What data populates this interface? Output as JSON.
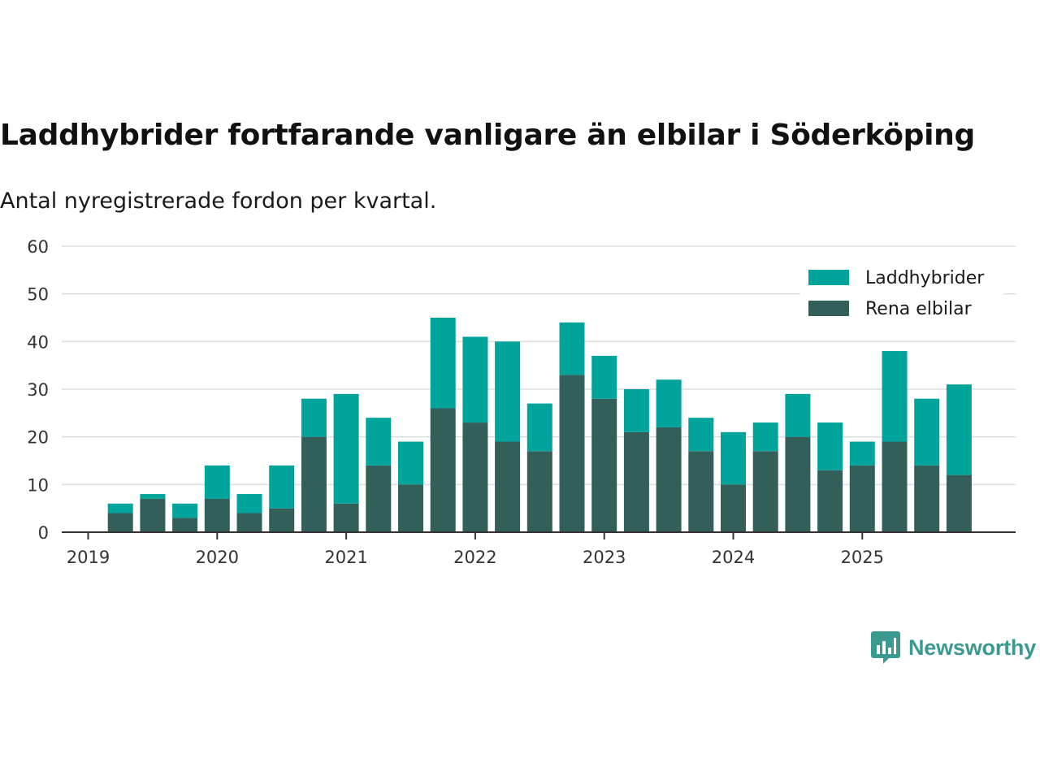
{
  "title": "Laddhybrider fortfarande vanligare än elbilar i Söderköping",
  "subtitle": "Antal nyregistrerade fordon per kvartal.",
  "brand": {
    "name": "Newsworthy",
    "icon": "newsworthy-logo-icon",
    "color": "#3a9a8f"
  },
  "colors": {
    "laddhybrider": "#00a49b",
    "rena_elbilar": "#335f5a",
    "grid": "#dddddd",
    "axis": "#333333"
  },
  "chart_data": {
    "type": "bar",
    "stacked": true,
    "categories": [
      "2019 Q2",
      "2019 Q3",
      "2019 Q4",
      "2020 Q1",
      "2020 Q2",
      "2020 Q3",
      "2020 Q4",
      "2021 Q1",
      "2021 Q2",
      "2021 Q3",
      "2021 Q4",
      "2022 Q1",
      "2022 Q2",
      "2022 Q3",
      "2022 Q4",
      "2023 Q1",
      "2023 Q2",
      "2023 Q3",
      "2023 Q4",
      "2024 Q1",
      "2024 Q2",
      "2024 Q3",
      "2024 Q4",
      "2025 Q1",
      "2025 Q2",
      "2025 Q3",
      "2025 Q4"
    ],
    "series": [
      {
        "name": "Rena elbilar",
        "values": [
          4,
          7,
          3,
          7,
          4,
          5,
          20,
          6,
          14,
          10,
          26,
          23,
          19,
          17,
          33,
          28,
          21,
          22,
          17,
          10,
          17,
          20,
          13,
          14,
          19,
          14,
          12
        ]
      },
      {
        "name": "Laddhybrider",
        "values": [
          2,
          1,
          3,
          7,
          4,
          9,
          8,
          23,
          10,
          9,
          19,
          18,
          21,
          10,
          11,
          9,
          9,
          10,
          7,
          11,
          6,
          9,
          10,
          5,
          19,
          14,
          19
        ]
      }
    ],
    "legend": [
      "Laddhybrider",
      "Rena elbilar"
    ],
    "legend_position": "top-right",
    "x_ticks": [
      "2019",
      "2020",
      "2021",
      "2022",
      "2023",
      "2024",
      "2025"
    ],
    "y_ticks": [
      0,
      10,
      20,
      30,
      40,
      50,
      60
    ],
    "ylim": [
      0,
      60
    ],
    "xlabel": "",
    "ylabel": "",
    "grid": true
  }
}
